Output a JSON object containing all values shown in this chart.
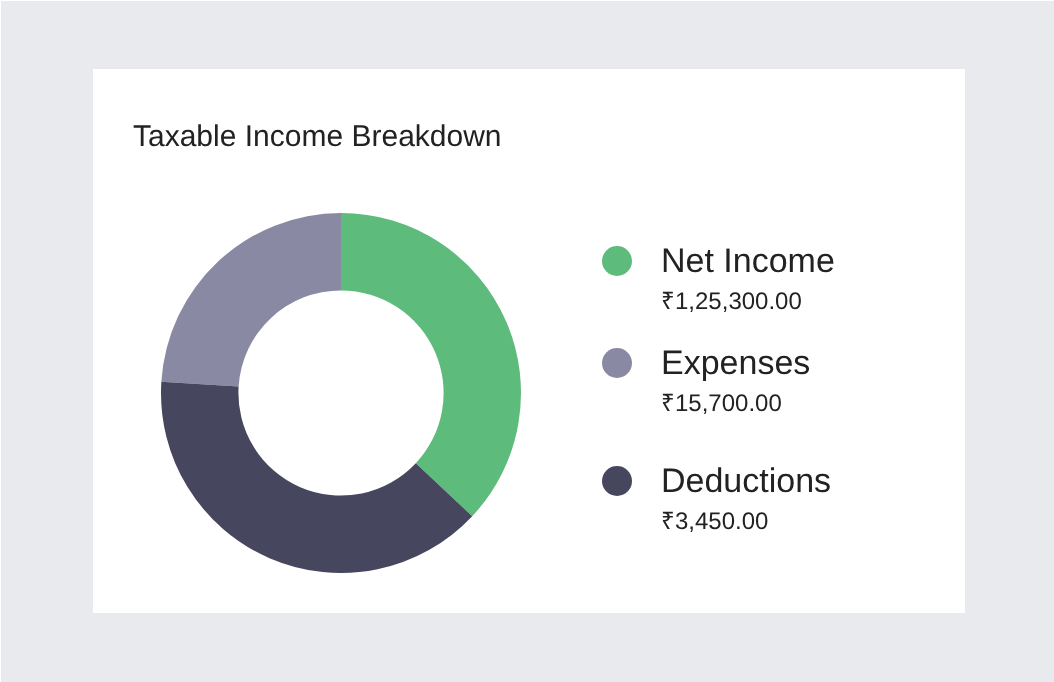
{
  "chart_data": {
    "type": "donut",
    "title": "Taxable Income Breakdown",
    "categories": [
      "Net Income",
      "Expenses",
      "Deductions"
    ],
    "values": [
      37,
      24,
      39
    ],
    "colors": [
      "#5dbb7c",
      "#8a89a3",
      "#47465f"
    ],
    "annotations": [
      "₹1,25,300.00",
      "₹15,700.00",
      "₹3,450.00"
    ],
    "legend": "right"
  }
}
